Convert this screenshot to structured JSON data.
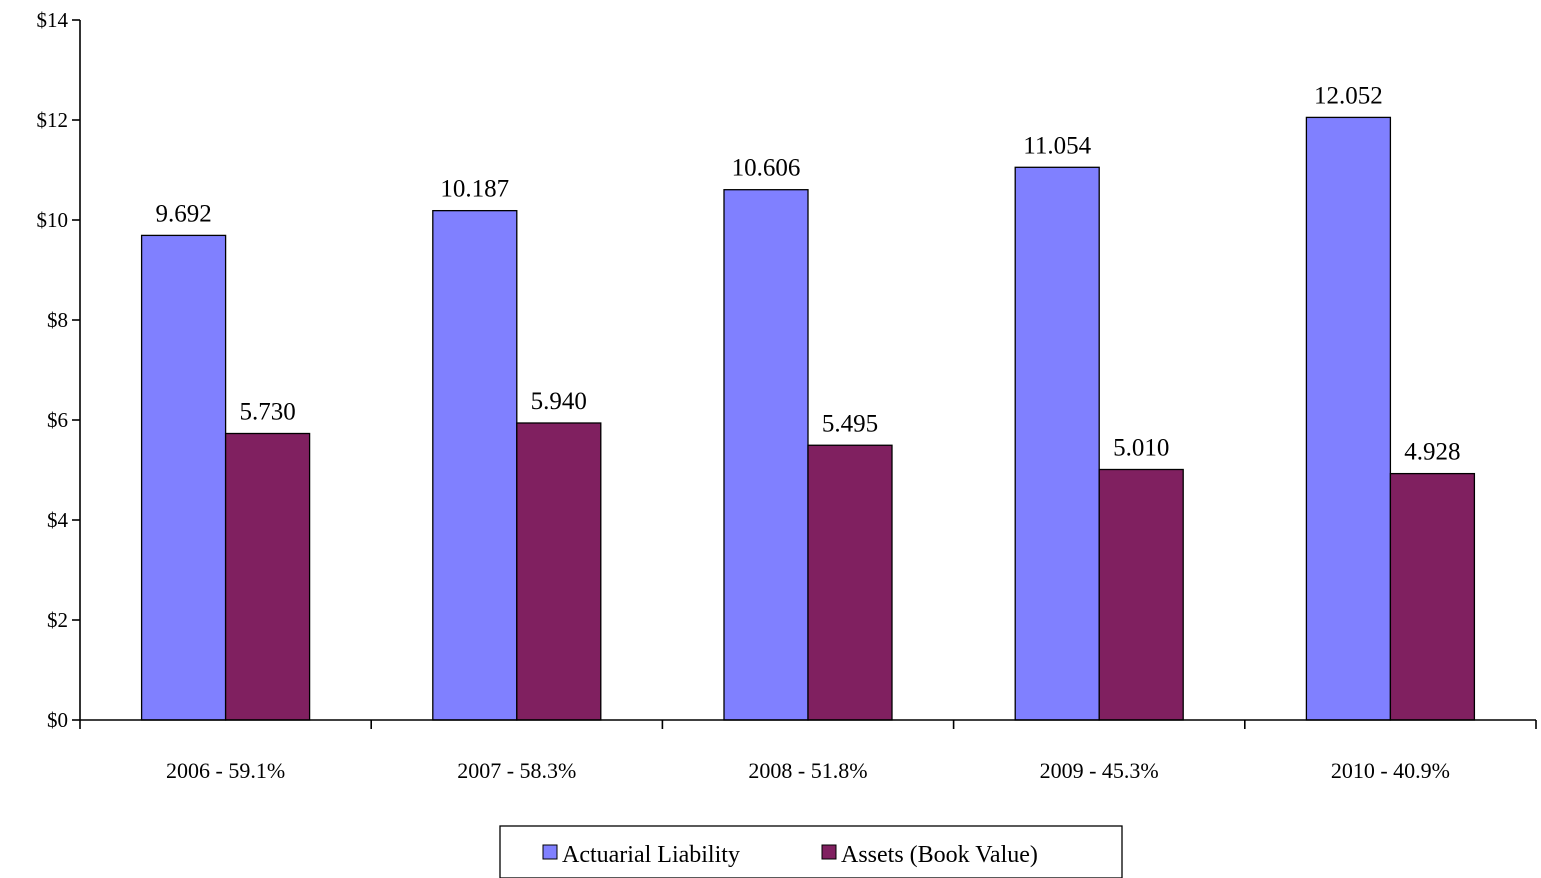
{
  "chart_data": {
    "type": "bar",
    "categories": [
      "2006 - 59.1%",
      "2007 - 58.3%",
      "2008 - 51.8%",
      "2009 - 45.3%",
      "2010 - 40.9%"
    ],
    "series": [
      {
        "name": "Actuarial Liability",
        "values": [
          9.692,
          10.187,
          10.606,
          11.054,
          12.052
        ],
        "labels": [
          "9.692",
          "10.187",
          "10.606",
          "11.054",
          "12.052"
        ],
        "color": "#8080FF"
      },
      {
        "name": "Assets (Book Value)",
        "values": [
          5.73,
          5.94,
          5.495,
          5.01,
          4.928
        ],
        "labels": [
          "5.730",
          "5.940",
          "5.495",
          "5.010",
          "4.928"
        ],
        "color": "#802060"
      }
    ],
    "ylim": [
      0,
      14
    ],
    "yticks": [
      0,
      2,
      4,
      6,
      8,
      10,
      12,
      14
    ],
    "ytick_labels": [
      "$0",
      "$2",
      "$4",
      "$6",
      "$8",
      "$10",
      "$12",
      "$14"
    ],
    "legend_position": "bottom-center",
    "grid": false
  }
}
